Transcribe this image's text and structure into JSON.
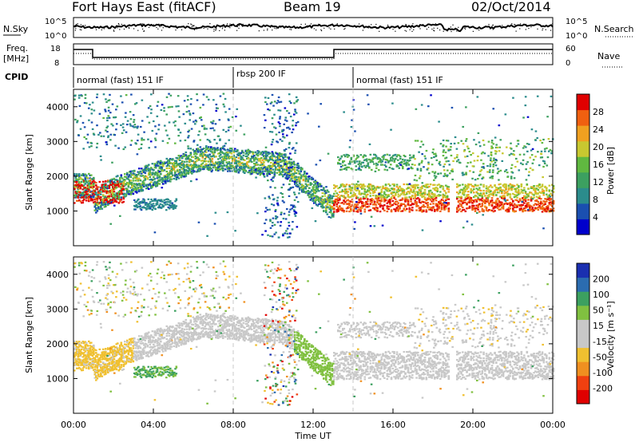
{
  "header": {
    "radar": "Fort Hays East (fitACF)",
    "beam": "Beam 19",
    "date": "02/Oct/2014"
  },
  "colors": {
    "background": "#ffffff",
    "axis": "#000000",
    "sky_noise": "#000000",
    "mode_divider": "#c8c8c8"
  },
  "noise_panel": {
    "left_label": "N.Sky",
    "right_label": "N.Search",
    "left_ticks": [
      "10^5",
      "10^0"
    ],
    "right_ticks": [
      "10^5",
      "10^0"
    ]
  },
  "freq_panel": {
    "left_label_1": "Freq.",
    "left_label_2": "[MHz]",
    "right_label": "Nave",
    "left_ticks": [
      "18",
      "8"
    ],
    "right_ticks": [
      "60",
      "0"
    ]
  },
  "cpid_panel": {
    "label": "CPID",
    "modes": [
      {
        "name": "normal (fast) 151 IF",
        "start": 0,
        "end": 8
      },
      {
        "name": "rbsp 200 IF",
        "start": 8,
        "end": 14
      },
      {
        "name": "normal (fast) 151 IF",
        "start": 14,
        "end": 24
      }
    ]
  },
  "chart_data": [
    {
      "type": "heatmap",
      "quantity": "Power",
      "ylabel": "Slant Range [km]",
      "xlabel": "Time UT",
      "xlim_hours": [
        0,
        24
      ],
      "ylim_km": [
        0,
        4500
      ],
      "y_ticks": [
        "1000",
        "2000",
        "3000",
        "4000"
      ],
      "x_ticks": [
        "00:00",
        "04:00",
        "08:00",
        "12:00",
        "16:00",
        "20:00",
        "00:00"
      ],
      "colorbar": {
        "label": "Power [dB]",
        "ticks": [
          "28",
          "24",
          "20",
          "16",
          "12",
          "8",
          "4"
        ],
        "range": [
          0,
          30
        ],
        "colors": [
          "#0000cc",
          "#1a4fb0",
          "#2b8c8c",
          "#3ca060",
          "#60b840",
          "#c8c830",
          "#f0a020",
          "#f06010",
          "#e00000"
        ]
      }
    },
    {
      "type": "heatmap",
      "quantity": "Velocity",
      "ylabel": "Slant Range [km]",
      "xlabel": "Time UT",
      "xlim_hours": [
        0,
        24
      ],
      "ylim_km": [
        0,
        4500
      ],
      "y_ticks": [
        "1000",
        "2000",
        "3000",
        "4000"
      ],
      "x_ticks": [
        "00:00",
        "04:00",
        "08:00",
        "12:00",
        "16:00",
        "20:00",
        "00:00"
      ],
      "colorbar": {
        "label": "Velocity [m s⁻¹]",
        "ticks": [
          "200",
          "100",
          "50",
          "15",
          "-15",
          "-50",
          "-100",
          "-200"
        ],
        "range": [
          -250,
          250
        ],
        "colors": [
          "#e00000",
          "#f04010",
          "#f09020",
          "#f0c030",
          "#c8c8c8",
          "#c8c8c8",
          "#80c040",
          "#3ca060",
          "#2b6cb0",
          "#1a2fb0"
        ]
      }
    }
  ]
}
